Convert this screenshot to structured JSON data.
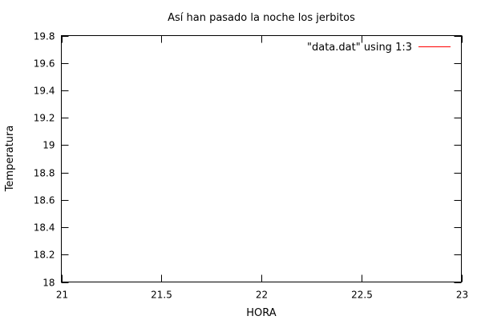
{
  "chart_data": {
    "type": "line",
    "title": "Así han pasado la noche los jerbitos",
    "xlabel": "HORA",
    "ylabel": "Temperatura",
    "xlim": [
      21,
      23
    ],
    "ylim": [
      18,
      19.8
    ],
    "x_ticks": [
      21,
      21.5,
      22,
      22.5,
      23
    ],
    "x_tick_labels": [
      "21",
      "21.5",
      "22",
      "22.5",
      "23"
    ],
    "y_ticks": [
      18,
      18.2,
      18.4,
      18.6,
      18.8,
      19,
      19.2,
      19.4,
      19.6,
      19.8
    ],
    "y_tick_labels": [
      "18",
      "18.2",
      "18.4",
      "18.6",
      "18.8",
      "19",
      "19.2",
      "19.4",
      "19.6",
      "19.8"
    ],
    "grid": false,
    "legend_position": "top-right",
    "series": [
      {
        "name": "\"data.dat\" using 1:3",
        "color": "#ff0000",
        "x": [],
        "y": []
      }
    ]
  }
}
